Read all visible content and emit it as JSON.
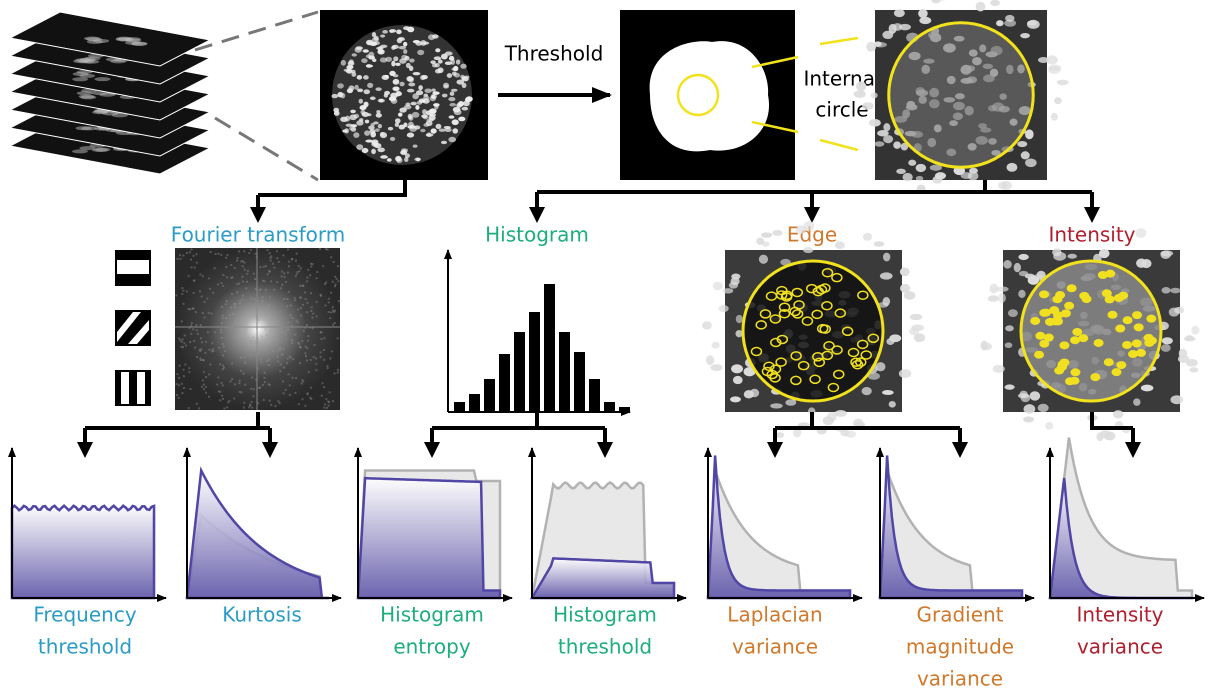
{
  "pipeline": {
    "threshold_label": "Threshold",
    "circle_label": [
      "Internal",
      "circle"
    ]
  },
  "branches": [
    {
      "title": "Fourier transform",
      "color": "#2a9cc6",
      "metrics": [
        [
          "Frequency",
          "threshold"
        ],
        [
          "Kurtosis"
        ]
      ]
    },
    {
      "title": "Histogram",
      "color": "#1dae7c",
      "metrics": [
        [
          "Histogram",
          "entropy"
        ],
        [
          "Histogram",
          "threshold"
        ]
      ]
    },
    {
      "title": "Edge",
      "color": "#d0792c",
      "metrics": [
        [
          "Laplacian",
          "variance"
        ],
        [
          "Gradient",
          "magnitude",
          "variance"
        ]
      ]
    },
    {
      "title": "Intensity",
      "color": "#b01f2d",
      "metrics": [
        [
          "Intensity",
          "variance"
        ]
      ]
    }
  ]
}
